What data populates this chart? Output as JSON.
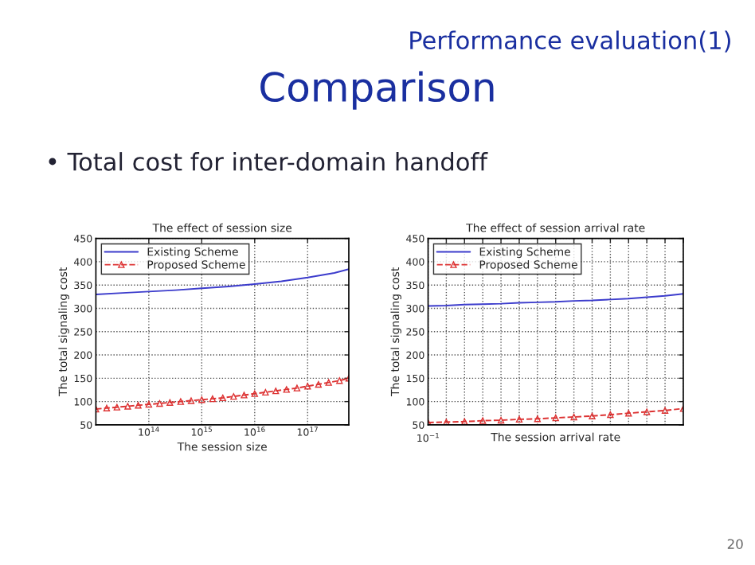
{
  "chart_data": [
    {
      "type": "line",
      "title": "The effect of session size",
      "xlabel": "The session size",
      "ylabel": "The total signaling cost",
      "annotations": [
        "Performance evaluation(1)",
        "Comparison",
        "• Total cost for inter-domain handoff",
        "20"
      ],
      "log": "x",
      "xlim": [
        10000000000000.0,
        6e+17
      ],
      "xticks": [
        {
          "value": 100000000000000.0,
          "label": "10$^{14}$"
        },
        {
          "value": 1000000000000000.0,
          "label": "10$^{15}$"
        },
        {
          "value": 1e+16,
          "label": "10$^{16}$"
        },
        {
          "value": 1e+17,
          "label": "10$^{17}$"
        }
      ],
      "ylim": [
        50,
        450
      ],
      "yticks": [
        50,
        100,
        150,
        200,
        250,
        300,
        350,
        400,
        450
      ],
      "grid": true,
      "legend": "top left",
      "series": [
        {
          "name": "Existing Scheme",
          "color": "#3c3ccc",
          "marker": "none",
          "line_style": "solid",
          "x": [
            10000000000000.0,
            32000000000000.0,
            100000000000000.0,
            320000000000000.0,
            1000000000000000.0,
            3200000000000000.0,
            1e+16,
            3.2e+16,
            1e+17,
            3.2e+17,
            6e+17
          ],
          "values": [
            330,
            333,
            336,
            339,
            343,
            347,
            352,
            358,
            366,
            376,
            384
          ]
        },
        {
          "name": "Proposed Scheme",
          "color": "#dd3333",
          "marker": "triangle",
          "line_style": "dashed",
          "x": [
            10000000000000.0,
            16000000000000.0,
            25000000000000.0,
            40000000000000.0,
            63000000000000.0,
            100000000000000.0,
            160000000000000.0,
            250000000000000.0,
            400000000000000.0,
            630000000000000.0,
            1000000000000000.0,
            1600000000000000.0,
            2500000000000000.0,
            4000000000000000.0,
            6300000000000000.0,
            1e+16,
            1.6e+16,
            2.5e+16,
            4e+16,
            6.3e+16,
            1e+17,
            1.6e+17,
            2.5e+17,
            4e+17,
            6e+17
          ],
          "values": [
            84,
            86,
            88,
            90,
            92,
            94,
            96,
            98,
            100,
            102,
            104,
            106,
            108,
            111,
            114,
            117,
            120,
            123,
            126,
            129,
            133,
            137,
            141,
            145,
            150
          ]
        }
      ]
    },
    {
      "type": "line",
      "title": "The effect of session arrival rate",
      "xlabel": "The session arrival rate",
      "ylabel": "The total signaling cost",
      "categories": [
        null,
        null,
        null,
        null,
        null,
        null,
        null,
        null,
        null,
        null,
        null,
        null,
        null,
        null,
        null
      ],
      "annotations": [
        "10$^{−1}$"
      ],
      "ylim": [
        50,
        450
      ],
      "yticks": [
        50,
        100,
        150,
        200,
        250,
        300,
        350,
        400,
        450
      ],
      "grid": true,
      "legend": "top left",
      "series": [
        {
          "name": "Existing Scheme",
          "color": "#3c3ccc",
          "marker": "none",
          "line_style": "solid",
          "values": [
            305,
            306,
            308,
            309,
            310,
            312,
            313,
            314,
            316,
            317,
            319,
            321,
            324,
            327,
            331
          ]
        },
        {
          "name": "Proposed Scheme",
          "color": "#dd3333",
          "marker": "triangle",
          "line_style": "dashed",
          "values": [
            55,
            56,
            57,
            59,
            60,
            62,
            63,
            65,
            67,
            69,
            72,
            75,
            78,
            81,
            85
          ]
        }
      ]
    }
  ]
}
